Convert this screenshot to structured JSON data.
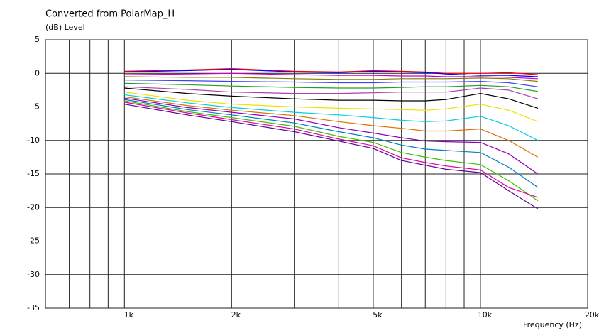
{
  "chart_data": {
    "type": "line",
    "title": "Converted from PolarMap_H",
    "y_label": "(dB)  Level",
    "x_label": "Frequency  (Hz)",
    "log_x": true,
    "grid": true,
    "xlim": [
      600,
      20000
    ],
    "ylim": [
      -35,
      5
    ],
    "xticks": [
      {
        "value": 1000,
        "label": "1k"
      },
      {
        "value": 2000,
        "label": "2k"
      },
      {
        "value": 5000,
        "label": "5k"
      },
      {
        "value": 10000,
        "label": "10k"
      },
      {
        "value": 20000,
        "label": "20k"
      }
    ],
    "xminor": [
      700,
      800,
      900,
      3000,
      4000,
      6000,
      7000,
      8000,
      9000
    ],
    "yticks": [
      5,
      0,
      -5,
      -10,
      -15,
      -20,
      -25,
      -30,
      -35
    ],
    "x": [
      1000,
      1500,
      2000,
      3000,
      4000,
      5000,
      6000,
      7000,
      8000,
      10000,
      12000,
      14500
    ],
    "series": [
      {
        "color": "#ff0000",
        "values": [
          0.3,
          0.5,
          0.7,
          0.3,
          0.2,
          0.4,
          0.3,
          0.2,
          0.0,
          0.0,
          0.1,
          -0.2
        ]
      },
      {
        "color": "#0000ff",
        "values": [
          0.2,
          0.4,
          0.6,
          0.2,
          0.1,
          0.3,
          0.2,
          0.1,
          -0.1,
          -0.3,
          -0.3,
          -0.5
        ]
      },
      {
        "color": "#cc00cc",
        "values": [
          -0.2,
          -0.1,
          0.0,
          -0.2,
          -0.3,
          -0.3,
          -0.4,
          -0.4,
          -0.5,
          -0.5,
          -0.6,
          -0.8
        ]
      },
      {
        "color": "#808000",
        "values": [
          -0.5,
          -0.6,
          -0.6,
          -0.8,
          -0.9,
          -0.9,
          -0.8,
          -0.8,
          -0.8,
          -0.7,
          -0.8,
          -1.2
        ]
      },
      {
        "color": "#4040ff",
        "values": [
          -1.0,
          -1.1,
          -1.2,
          -1.3,
          -1.4,
          -1.4,
          -1.3,
          -1.3,
          -1.3,
          -1.2,
          -1.4,
          -2.0
        ]
      },
      {
        "color": "#20a020",
        "values": [
          -1.5,
          -1.7,
          -1.9,
          -2.1,
          -2.2,
          -2.2,
          -2.1,
          -2.0,
          -2.0,
          -1.8,
          -2.0,
          -2.7
        ]
      },
      {
        "color": "#b040b0",
        "values": [
          -2.0,
          -2.4,
          -2.8,
          -3.0,
          -3.0,
          -2.9,
          -2.8,
          -2.8,
          -2.8,
          -2.2,
          -2.5,
          -3.8
        ]
      },
      {
        "color": "#000000",
        "values": [
          -2.2,
          -3.0,
          -3.4,
          -3.8,
          -4.0,
          -4.0,
          -4.1,
          -4.1,
          -3.9,
          -3.0,
          -3.8,
          -5.2
        ]
      },
      {
        "color": "#f0e000",
        "values": [
          -2.8,
          -4.0,
          -4.6,
          -5.0,
          -5.2,
          -5.3,
          -5.4,
          -5.5,
          -5.3,
          -4.6,
          -5.5,
          -7.2
        ]
      },
      {
        "color": "#00d0e0",
        "values": [
          -3.2,
          -4.4,
          -5.1,
          -5.8,
          -6.2,
          -6.6,
          -7.0,
          -7.2,
          -7.1,
          -6.4,
          -7.8,
          -10.0
        ]
      },
      {
        "color": "#e07000",
        "values": [
          -3.5,
          -4.8,
          -5.5,
          -6.3,
          -7.2,
          -7.8,
          -8.2,
          -8.6,
          -8.6,
          -8.3,
          -10.0,
          -12.5
        ]
      },
      {
        "color": "#9000c0",
        "values": [
          -3.7,
          -5.1,
          -5.8,
          -6.8,
          -8.1,
          -8.9,
          -9.6,
          -10.1,
          -10.2,
          -10.3,
          -12.0,
          -15.0
        ]
      },
      {
        "color": "#0080c0",
        "values": [
          -3.9,
          -5.4,
          -6.2,
          -7.4,
          -8.7,
          -9.6,
          -10.7,
          -11.3,
          -11.5,
          -11.8,
          -14.0,
          -17.0
        ]
      },
      {
        "color": "#40c000",
        "values": [
          -4.1,
          -5.7,
          -6.6,
          -7.9,
          -9.4,
          -10.3,
          -11.8,
          -12.5,
          -13.0,
          -13.6,
          -16.0,
          -19.0
        ]
      },
      {
        "color": "#e000a0",
        "values": [
          -4.3,
          -5.9,
          -6.9,
          -8.3,
          -9.8,
          -10.8,
          -12.6,
          -13.3,
          -13.8,
          -14.4,
          -17.0,
          -18.5
        ]
      },
      {
        "color": "#6000a0",
        "values": [
          -4.6,
          -6.2,
          -7.2,
          -8.7,
          -10.1,
          -11.2,
          -13.0,
          -13.7,
          -14.3,
          -14.8,
          -17.5,
          -20.2
        ]
      }
    ]
  }
}
